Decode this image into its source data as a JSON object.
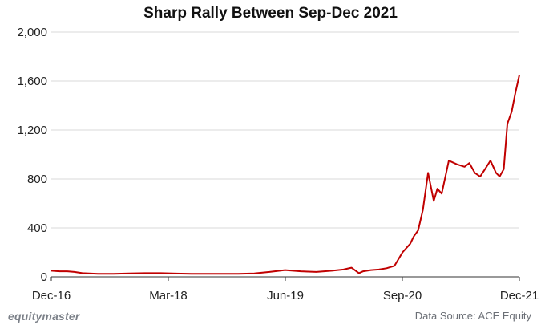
{
  "chart_data": {
    "type": "line",
    "title": "Sharp Rally Between Sep-Dec 2021",
    "xlabel": "",
    "ylabel": "",
    "x_tick_labels": [
      "Dec-16",
      "Mar-18",
      "Jun-19",
      "Sep-20",
      "Dec-21"
    ],
    "x_range": [
      "2016-12",
      "2021-12"
    ],
    "ylim": [
      0,
      2000
    ],
    "y_ticks": [
      0,
      400,
      800,
      1200,
      1600,
      2000
    ],
    "y_tick_labels": [
      "0",
      "400",
      "800",
      "1,200",
      "1,600",
      "2,000"
    ],
    "grid": "horizontal",
    "line_color": "#c00000",
    "series": [
      {
        "name": "",
        "x": [
          "2016-12-01",
          "2017-01-01",
          "2017-02-01",
          "2017-03-01",
          "2017-04-01",
          "2017-06-01",
          "2017-08-01",
          "2017-10-01",
          "2017-12-01",
          "2018-02-01",
          "2018-04-01",
          "2018-06-01",
          "2018-08-01",
          "2018-10-01",
          "2018-12-01",
          "2019-02-01",
          "2019-04-01",
          "2019-06-01",
          "2019-08-01",
          "2019-10-01",
          "2019-12-01",
          "2020-01-15",
          "2020-02-15",
          "2020-03-15",
          "2020-04-01",
          "2020-05-01",
          "2020-06-01",
          "2020-07-01",
          "2020-08-01",
          "2020-09-01",
          "2020-10-01",
          "2020-10-15",
          "2020-11-01",
          "2020-11-20",
          "2020-12-10",
          "2021-01-01",
          "2021-01-15",
          "2021-02-01",
          "2021-03-01",
          "2021-04-01",
          "2021-05-01",
          "2021-05-20",
          "2021-06-10",
          "2021-07-01",
          "2021-07-20",
          "2021-08-10",
          "2021-09-01",
          "2021-09-15",
          "2021-10-01",
          "2021-10-15",
          "2021-11-01",
          "2021-11-15",
          "2021-12-01"
        ],
        "values": [
          50,
          45,
          45,
          40,
          30,
          25,
          25,
          28,
          30,
          30,
          27,
          25,
          25,
          25,
          25,
          28,
          40,
          55,
          45,
          40,
          50,
          60,
          75,
          30,
          45,
          55,
          60,
          70,
          90,
          200,
          270,
          330,
          380,
          550,
          850,
          620,
          720,
          680,
          950,
          920,
          900,
          930,
          850,
          820,
          880,
          950,
          850,
          820,
          880,
          1250,
          1350,
          1500,
          1650
        ]
      }
    ]
  },
  "footer": {
    "brand": "equitymaster",
    "source": "Data Source: ACE Equity"
  }
}
